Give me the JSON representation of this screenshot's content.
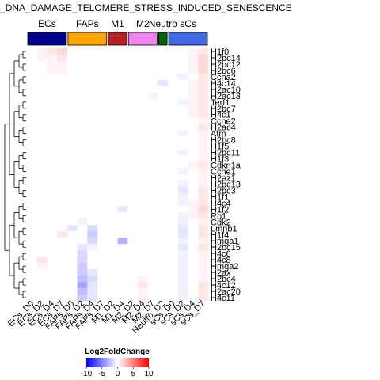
{
  "chart_data": {
    "type": "heatmap",
    "title": "_DNA_DAMAGE_TELOMERE_STRESS_INDUCED_SENESCENCE",
    "groups": [
      {
        "name": "ECs",
        "color": "#00008b",
        "columns": [
          "ECs_D0",
          "ECs_D2",
          "ECs_D4",
          "ECs_D7"
        ]
      },
      {
        "name": "FAPs",
        "color": "#ffa500",
        "columns": [
          "FAPs_D0",
          "FAPs_D2",
          "FAPs_D4",
          "FAPs_D7"
        ]
      },
      {
        "name": "M1",
        "color": "#b22222",
        "columns": [
          "M1_D2",
          "M1_D4"
        ]
      },
      {
        "name": "M2",
        "color": "#ee82ee",
        "columns": [
          "M2_D2",
          "M2_D4",
          "M2_D7"
        ]
      },
      {
        "name": "Neutro",
        "color": "#006400",
        "columns": [
          "Neutro_D2"
        ]
      },
      {
        "name": "sCs",
        "color": "#4169e1",
        "columns": [
          "sCs_D0",
          "sCs_D2",
          "sCs_D4",
          "sCs_D7"
        ]
      }
    ],
    "columns": [
      "ECs_D0",
      "ECs_D2",
      "ECs_D4",
      "ECs_D7",
      "FAPs_D0",
      "FAPs_D2",
      "FAPs_D4",
      "FAPs_D7",
      "M1_D2",
      "M1_D4",
      "M2_D2",
      "M2_D4",
      "M2_D7",
      "Neutro_D2",
      "sCs_D0",
      "sCs_D2",
      "sCs_D4",
      "sCs_D7"
    ],
    "rows": [
      "H1f0",
      "H2bc14",
      "H2bc12",
      "H2bc6",
      "Ccna2",
      "H4c14",
      "H2ac10",
      "H2ac13",
      "Terf1",
      "H2bc7",
      "H4c1",
      "Ccne2",
      "H2ac4",
      "Atm",
      "H2bc8",
      "H1f5",
      "H2bc11",
      "H1f3",
      "Cdkn1a",
      "Ccne1",
      "H2az1",
      "H2bc13",
      "H2bc3",
      "H1f1",
      "H4c4",
      "H1f2",
      "Rb1",
      "Cdk2",
      "Lmnb1",
      "H1f4",
      "Hmga1",
      "H2bc15",
      "H4c6",
      "H4c8",
      "Hmga2",
      "H2ax",
      "H2bc4",
      "H4c12",
      "H2ac20",
      "H4c11"
    ],
    "values": [
      [
        0,
        0.5,
        1,
        1.5,
        0,
        0,
        0,
        0,
        0,
        0,
        0,
        0,
        0,
        0,
        0,
        0,
        0.5,
        1
      ],
      [
        0,
        0.5,
        0.5,
        1,
        0,
        0,
        0,
        0,
        0,
        0,
        0,
        0,
        0,
        0,
        0,
        0,
        0.5,
        1.5
      ],
      [
        0,
        0,
        0.5,
        0.5,
        0,
        0,
        0,
        0,
        0,
        0,
        0,
        0,
        0,
        0,
        0,
        0,
        0.5,
        1.5
      ],
      [
        0,
        0,
        0.5,
        0.5,
        0,
        0,
        0,
        0,
        0,
        0,
        0,
        0,
        0,
        0,
        0,
        0,
        0.5,
        1.5
      ],
      [
        0,
        0,
        0,
        0,
        0,
        0,
        0,
        0,
        0,
        0,
        0,
        0,
        0,
        0,
        0,
        -0.5,
        0,
        1
      ],
      [
        0,
        0,
        0,
        0,
        0,
        0,
        0,
        0,
        0,
        0,
        0,
        0,
        0,
        -1,
        0,
        0,
        0.5,
        1
      ],
      [
        0,
        0,
        0,
        0,
        0,
        0,
        0,
        0,
        0,
        0,
        0,
        0,
        0,
        0,
        0,
        0,
        0.5,
        1
      ],
      [
        0,
        0,
        0,
        0,
        0,
        0,
        0,
        0,
        0,
        0,
        0,
        0,
        0.5,
        0,
        0,
        0,
        0.5,
        1
      ],
      [
        0,
        0,
        0,
        0,
        0,
        0,
        0,
        0,
        0,
        0,
        0,
        0,
        0,
        0,
        0,
        -0.5,
        0.5,
        1
      ],
      [
        0,
        0,
        0,
        0,
        0,
        0,
        0,
        0,
        0,
        0,
        0,
        0,
        0,
        0,
        0,
        0,
        0.5,
        1
      ],
      [
        0,
        0,
        0,
        0,
        0,
        0,
        0,
        0,
        0,
        0,
        0,
        0,
        0,
        0,
        0,
        0,
        0.5,
        1
      ],
      [
        0,
        0,
        0,
        0,
        0,
        0,
        0,
        0,
        0,
        0,
        0,
        0,
        0,
        0,
        0,
        0,
        0,
        0.5
      ],
      [
        0,
        0,
        0,
        0,
        0,
        0,
        0,
        0,
        0,
        0,
        0,
        0,
        0,
        0,
        0,
        0,
        0,
        1
      ],
      [
        0,
        0,
        0,
        0,
        0,
        0,
        0,
        0,
        0,
        0,
        0,
        0,
        0,
        0,
        0,
        -0.5,
        0,
        0.5
      ],
      [
        0,
        0,
        0,
        0,
        0,
        0,
        0,
        0,
        0,
        0,
        0,
        0,
        0,
        0,
        0,
        0,
        0,
        0.5
      ],
      [
        0,
        0,
        0,
        0,
        0,
        0,
        0,
        0,
        0,
        0,
        0,
        0,
        0,
        0,
        0,
        0,
        0,
        0.5
      ],
      [
        0,
        0,
        0,
        0,
        0,
        0,
        0,
        0,
        0,
        0,
        0,
        0,
        0,
        0,
        0,
        -0.5,
        0,
        0.5
      ],
      [
        0,
        0,
        0,
        0,
        0,
        0,
        0,
        0,
        0,
        0,
        0,
        0,
        0,
        0,
        0,
        0,
        0,
        0.5
      ],
      [
        0,
        0,
        0,
        0,
        0,
        0,
        0,
        0,
        0,
        0,
        0,
        0,
        0,
        0,
        0,
        0,
        0.5,
        1
      ],
      [
        0,
        0,
        0,
        0,
        0,
        0,
        0,
        0,
        0,
        0,
        0,
        0,
        0,
        0,
        0,
        -0.5,
        0,
        0.5
      ],
      [
        0,
        0,
        0,
        0,
        0,
        0,
        0,
        0,
        0,
        0,
        0,
        0,
        0,
        0,
        0,
        0,
        0,
        0.5
      ],
      [
        0,
        0,
        0,
        0,
        0,
        0,
        0,
        0,
        0,
        0,
        0,
        0,
        0,
        0,
        0,
        -0.5,
        0,
        0.5
      ],
      [
        0,
        0,
        0,
        0,
        0,
        0,
        0,
        0,
        0,
        0,
        0,
        0,
        0,
        0,
        0,
        -1,
        0,
        1
      ],
      [
        0,
        0,
        0,
        0,
        0,
        0,
        0,
        0,
        0,
        0,
        0,
        0,
        0,
        0,
        0,
        -0.5,
        0,
        1
      ],
      [
        0,
        0,
        0,
        0,
        0,
        0,
        0,
        0,
        0,
        0,
        0,
        0,
        0,
        0,
        0,
        -0.5,
        0.5,
        1
      ],
      [
        0,
        0,
        0,
        0,
        0,
        0,
        0,
        0,
        0,
        -1,
        0,
        0,
        0,
        0,
        0,
        0,
        0.5,
        1.5
      ],
      [
        0,
        0,
        0,
        0,
        0,
        0,
        0,
        0,
        0,
        0,
        0,
        0,
        0,
        0,
        0,
        -0.5,
        0.5,
        1
      ],
      [
        0,
        0,
        0,
        0,
        0,
        -0.5,
        0,
        0,
        0,
        0,
        0,
        0,
        0,
        0,
        0,
        -0.5,
        0,
        0.5
      ],
      [
        0,
        0,
        0,
        0,
        -1,
        0,
        -1.5,
        0,
        0,
        0,
        0,
        0,
        0,
        0,
        0,
        -1,
        0,
        1
      ],
      [
        0,
        0,
        0,
        1,
        0,
        0,
        -2,
        0,
        0,
        0,
        0,
        0,
        0,
        0,
        0,
        -1,
        0,
        1
      ],
      [
        0,
        0,
        0,
        0,
        0,
        0,
        -1.5,
        0,
        0,
        -3,
        0,
        0,
        0,
        0,
        0,
        -0.5,
        0,
        0.5
      ],
      [
        0,
        0,
        0,
        0,
        0,
        -1,
        -0.5,
        0,
        0,
        0,
        0,
        0,
        0,
        0,
        0,
        -1,
        0,
        1
      ],
      [
        0,
        0,
        0,
        0,
        0,
        -1.5,
        0,
        0,
        0,
        0,
        0,
        0,
        0,
        0,
        0,
        -0.5,
        0,
        0.5
      ],
      [
        0,
        1,
        0,
        0,
        0,
        -1.5,
        0,
        0,
        0,
        0,
        0,
        0,
        0,
        0,
        0,
        -0.5,
        0,
        0.5
      ],
      [
        0,
        0.5,
        0,
        0,
        0,
        -2,
        0,
        0,
        0,
        0,
        0,
        0,
        0,
        0,
        0,
        -0.5,
        0,
        0.5
      ],
      [
        0,
        0,
        0,
        0,
        0,
        -2,
        -1,
        0,
        0,
        0,
        0,
        0,
        0,
        0,
        0,
        -0.5,
        0,
        0.5
      ],
      [
        0,
        0,
        0,
        0,
        0,
        -2.5,
        -1.5,
        0,
        0,
        0,
        0,
        0.5,
        0,
        0,
        0,
        -0.5,
        0,
        0.5
      ],
      [
        0,
        0,
        0,
        0,
        0,
        -3.5,
        -1,
        0,
        0,
        0,
        0,
        1,
        0,
        0,
        0,
        -0.5,
        0,
        1
      ],
      [
        0,
        0,
        0,
        0,
        0,
        -2.5,
        -1,
        0,
        0,
        0,
        0,
        0.5,
        0,
        0,
        0,
        -0.5,
        0,
        1
      ],
      [
        0,
        0,
        0,
        0,
        0,
        -2,
        -1,
        0,
        0,
        0,
        0,
        0.5,
        0,
        0,
        0,
        -0.5,
        0,
        1
      ]
    ],
    "dendrogram_order_note": "",
    "legend": {
      "title": "Log2FoldChange",
      "ticks": [
        "-10",
        "-5",
        "0",
        "5",
        "10"
      ],
      "range": [
        -10,
        10
      ],
      "colors": [
        "#0000ff",
        "#ffffff",
        "#ff0000"
      ],
      "placement": "bottom-left"
    }
  }
}
